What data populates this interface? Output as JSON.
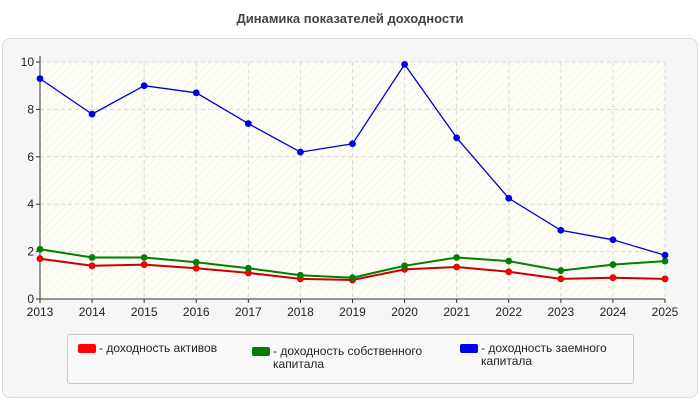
{
  "title": "Динамика показателей доходности",
  "chart_data": {
    "type": "line",
    "x": [
      "2013",
      "2014",
      "2015",
      "2016",
      "2017",
      "2018",
      "2019",
      "2020",
      "2021",
      "2022",
      "2023",
      "2024",
      "2025"
    ],
    "ylim": [
      0,
      10
    ],
    "yticks": [
      "0",
      "2",
      "4",
      "6",
      "8",
      "10"
    ],
    "grid": true,
    "legend_position": "bottom",
    "series": [
      {
        "name": "- доходность активов",
        "color": "#ff0000",
        "line_color": "#cc0000",
        "values": [
          1.7,
          1.4,
          1.45,
          1.3,
          1.1,
          0.85,
          0.8,
          1.25,
          1.35,
          1.15,
          0.85,
          0.9,
          0.85
        ]
      },
      {
        "name": "- доходность собственного капитала",
        "color": "#007f00",
        "line_color": "#007f00",
        "values": [
          2.1,
          1.75,
          1.75,
          1.55,
          1.3,
          1.0,
          0.9,
          1.4,
          1.75,
          1.6,
          1.2,
          1.45,
          1.6
        ]
      },
      {
        "name": "- доходность заемного капитала",
        "color": "#0000ee",
        "line_color": "#0000cc",
        "values": [
          9.3,
          7.8,
          9.0,
          8.7,
          7.4,
          6.2,
          6.55,
          9.9,
          6.8,
          4.25,
          2.9,
          2.5,
          1.85
        ]
      }
    ]
  }
}
